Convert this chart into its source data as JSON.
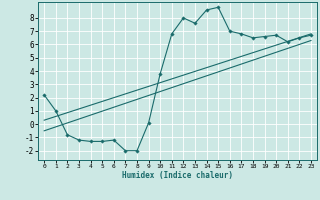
{
  "xlabel": "Humidex (Indice chaleur)",
  "xlim": [
    -0.5,
    23.5
  ],
  "ylim": [
    -2.7,
    9.2
  ],
  "xticks": [
    0,
    1,
    2,
    3,
    4,
    5,
    6,
    7,
    8,
    9,
    10,
    11,
    12,
    13,
    14,
    15,
    16,
    17,
    18,
    19,
    20,
    21,
    22,
    23
  ],
  "yticks": [
    -2,
    -1,
    0,
    1,
    2,
    3,
    4,
    5,
    6,
    7,
    8
  ],
  "bg_color": "#cce8e4",
  "line_color": "#1a6b6b",
  "grid_color": "#ffffff",
  "curve_x": [
    0,
    1,
    2,
    3,
    4,
    5,
    6,
    7,
    8,
    9,
    10,
    11,
    12,
    13,
    14,
    15,
    16,
    17,
    18,
    19,
    20,
    21,
    22,
    23
  ],
  "curve_y": [
    2.2,
    1.0,
    -0.8,
    -1.2,
    -1.3,
    -1.3,
    -1.2,
    -2.0,
    -2.0,
    0.1,
    3.8,
    6.8,
    8.0,
    7.6,
    8.6,
    8.8,
    7.0,
    6.8,
    6.5,
    6.6,
    6.7,
    6.2,
    6.5,
    6.7
  ],
  "trend1_x": [
    0,
    23
  ],
  "trend1_y": [
    0.3,
    6.8
  ],
  "trend2_x": [
    0,
    23
  ],
  "trend2_y": [
    -0.5,
    6.3
  ]
}
